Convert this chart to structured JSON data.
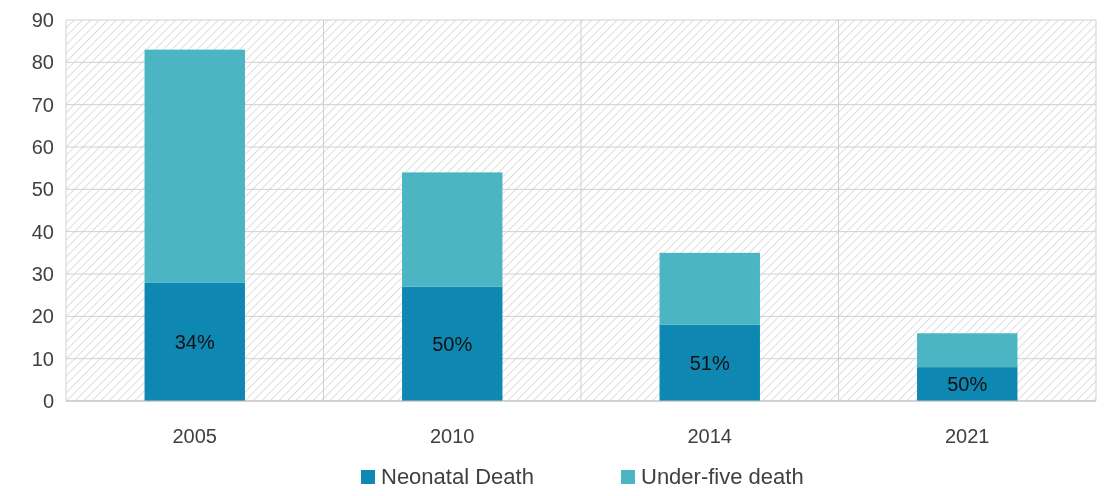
{
  "chart_data": {
    "type": "bar",
    "stacked": true,
    "categories": [
      "2005",
      "2010",
      "2014",
      "2021"
    ],
    "series": [
      {
        "name": "Neonatal Death",
        "color": "#0e88b2",
        "values": [
          28,
          27,
          18,
          8
        ]
      },
      {
        "name": "Under-five death",
        "color": "#4bb5c4",
        "values": [
          55,
          27,
          17,
          8
        ]
      }
    ],
    "annotations": [
      "34%",
      "50%",
      "51%",
      "50%"
    ],
    "ylim": [
      0,
      90
    ],
    "yticks": [
      0,
      10,
      20,
      30,
      40,
      50,
      60,
      70,
      80,
      90
    ],
    "grid": true,
    "legend": "bottom"
  }
}
